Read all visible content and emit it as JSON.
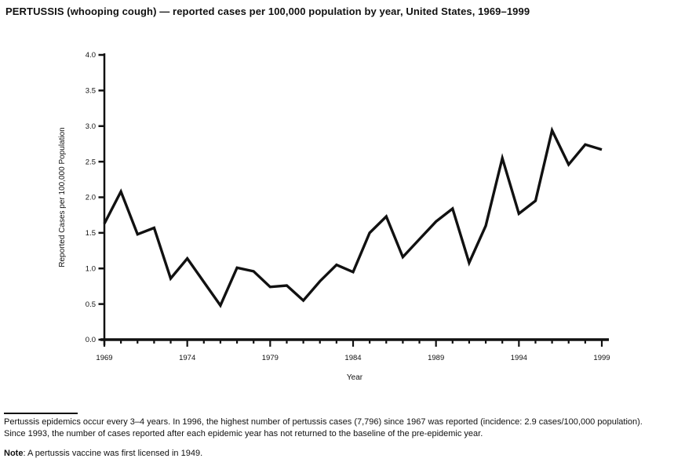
{
  "figure": {
    "title": "PERTUSSIS (whooping cough) — reported cases per 100,000 population by year, United States, 1969–1999"
  },
  "chart_data": {
    "type": "line",
    "x": [
      1969,
      1970,
      1971,
      1972,
      1973,
      1974,
      1975,
      1976,
      1977,
      1978,
      1979,
      1980,
      1981,
      1982,
      1983,
      1984,
      1985,
      1986,
      1987,
      1988,
      1989,
      1990,
      1991,
      1992,
      1993,
      1994,
      1995,
      1996,
      1997,
      1998,
      1999
    ],
    "values": [
      1.63,
      2.08,
      1.48,
      1.57,
      0.86,
      1.14,
      0.81,
      0.48,
      1.01,
      0.96,
      0.74,
      0.76,
      0.55,
      0.82,
      1.05,
      0.95,
      1.5,
      1.73,
      1.16,
      1.41,
      1.66,
      1.84,
      1.08,
      1.6,
      2.55,
      1.77,
      1.95,
      2.94,
      2.46,
      2.74,
      2.67
    ],
    "xlabel": "Year",
    "ylabel": "Reported Cases per 100,000 Population",
    "ylim": [
      0.0,
      4.0
    ],
    "ytick_interval": 0.5,
    "ytick_labels": [
      "0.0",
      "0.5",
      "1.0",
      "1.5",
      "2.0",
      "2.5",
      "3.0",
      "3.5",
      "4.0"
    ],
    "xticks_labeled": [
      1969,
      1974,
      1979,
      1984,
      1989,
      1994,
      1999
    ],
    "grid": false,
    "legend": "none",
    "line_color": "#111111",
    "axis_color": "#111111"
  },
  "footnote": {
    "line1": "Pertussis epidemics occur every 3–4 years. In 1996, the highest number of pertussis cases (7,796) since 1967 was reported (incidence: 2.9 cases/100,000 population).",
    "line2": "Since 1993, the number of cases reported after each epidemic year has not returned to the baseline of the pre-epidemic year.",
    "note_label": "Note",
    "note_body": ": A pertussis vaccine was first licensed in 1949."
  }
}
